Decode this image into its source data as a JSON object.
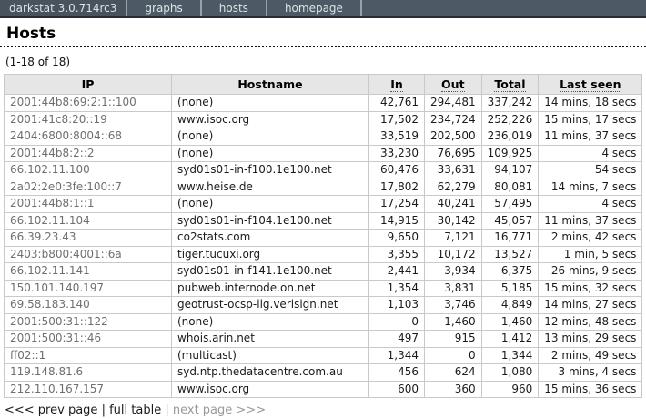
{
  "nav": {
    "title": "darkstat 3.0.714rc3",
    "items": [
      {
        "label": "graphs"
      },
      {
        "label": "hosts"
      },
      {
        "label": "homepage"
      }
    ]
  },
  "page": {
    "heading": "Hosts",
    "range_label": "(1-18 of 18)"
  },
  "table": {
    "columns": [
      {
        "label": "IP"
      },
      {
        "label": "Hostname"
      },
      {
        "label": "In"
      },
      {
        "label": "Out"
      },
      {
        "label": "Total"
      },
      {
        "label": "Last seen"
      }
    ],
    "rows": [
      {
        "ip": "2001:44b8:69:2:1::100",
        "hostname": "(none)",
        "in": "42,761",
        "out": "294,481",
        "total": "337,242",
        "last_seen": "14 mins, 18 secs"
      },
      {
        "ip": "2001:41c8:20::19",
        "hostname": "www.isoc.org",
        "in": "17,502",
        "out": "234,724",
        "total": "252,226",
        "last_seen": "15 mins, 17 secs"
      },
      {
        "ip": "2404:6800:8004::68",
        "hostname": "(none)",
        "in": "33,519",
        "out": "202,500",
        "total": "236,019",
        "last_seen": "11 mins, 37 secs"
      },
      {
        "ip": "2001:44b8:2::2",
        "hostname": "(none)",
        "in": "33,230",
        "out": "76,695",
        "total": "109,925",
        "last_seen": "4 secs"
      },
      {
        "ip": "66.102.11.100",
        "hostname": "syd01s01-in-f100.1e100.net",
        "in": "60,476",
        "out": "33,631",
        "total": "94,107",
        "last_seen": "54 secs"
      },
      {
        "ip": "2a02:2e0:3fe:100::7",
        "hostname": "www.heise.de",
        "in": "17,802",
        "out": "62,279",
        "total": "80,081",
        "last_seen": "14 mins, 7 secs"
      },
      {
        "ip": "2001:44b8:1::1",
        "hostname": "(none)",
        "in": "17,254",
        "out": "40,241",
        "total": "57,495",
        "last_seen": "4 secs"
      },
      {
        "ip": "66.102.11.104",
        "hostname": "syd01s01-in-f104.1e100.net",
        "in": "14,915",
        "out": "30,142",
        "total": "45,057",
        "last_seen": "11 mins, 37 secs"
      },
      {
        "ip": "66.39.23.43",
        "hostname": "co2stats.com",
        "in": "9,650",
        "out": "7,121",
        "total": "16,771",
        "last_seen": "2 mins, 42 secs"
      },
      {
        "ip": "2403:b800:4001::6a",
        "hostname": "tiger.tucuxi.org",
        "in": "3,355",
        "out": "10,172",
        "total": "13,527",
        "last_seen": "1 min, 5 secs"
      },
      {
        "ip": "66.102.11.141",
        "hostname": "syd01s01-in-f141.1e100.net",
        "in": "2,441",
        "out": "3,934",
        "total": "6,375",
        "last_seen": "26 mins, 9 secs"
      },
      {
        "ip": "150.101.140.197",
        "hostname": "pubweb.internode.on.net",
        "in": "1,354",
        "out": "3,831",
        "total": "5,185",
        "last_seen": "15 mins, 32 secs"
      },
      {
        "ip": "69.58.183.140",
        "hostname": "geotrust-ocsp-ilg.verisign.net",
        "in": "1,103",
        "out": "3,746",
        "total": "4,849",
        "last_seen": "14 mins, 27 secs"
      },
      {
        "ip": "2001:500:31::122",
        "hostname": "(none)",
        "in": "0",
        "out": "1,460",
        "total": "1,460",
        "last_seen": "12 mins, 48 secs"
      },
      {
        "ip": "2001:500:31::46",
        "hostname": "whois.arin.net",
        "in": "497",
        "out": "915",
        "total": "1,412",
        "last_seen": "13 mins, 29 secs"
      },
      {
        "ip": "ff02::1",
        "hostname": "(multicast)",
        "in": "1,344",
        "out": "0",
        "total": "1,344",
        "last_seen": "2 mins, 49 secs"
      },
      {
        "ip": "119.148.81.6",
        "hostname": "syd.ntp.thedatacentre.com.au",
        "in": "456",
        "out": "624",
        "total": "1,080",
        "last_seen": "3 mins, 4 secs"
      },
      {
        "ip": "212.110.167.157",
        "hostname": "www.isoc.org",
        "in": "600",
        "out": "360",
        "total": "960",
        "last_seen": "15 mins, 36 secs"
      }
    ]
  },
  "pager": {
    "prev_label": "<<< prev page",
    "full_table_label": "full table",
    "next_label": "next page >>>",
    "separator": "|"
  },
  "colors": {
    "navbar_background": "#4d5a65",
    "navbar_title_background": "#48535d",
    "navbar_text": "#dde3e7",
    "header_row_background": "#e6e6e6",
    "table_border": "#c9c9c9",
    "ip_text": "#6f6f6f",
    "disabled_link": "#9a9a9a"
  }
}
